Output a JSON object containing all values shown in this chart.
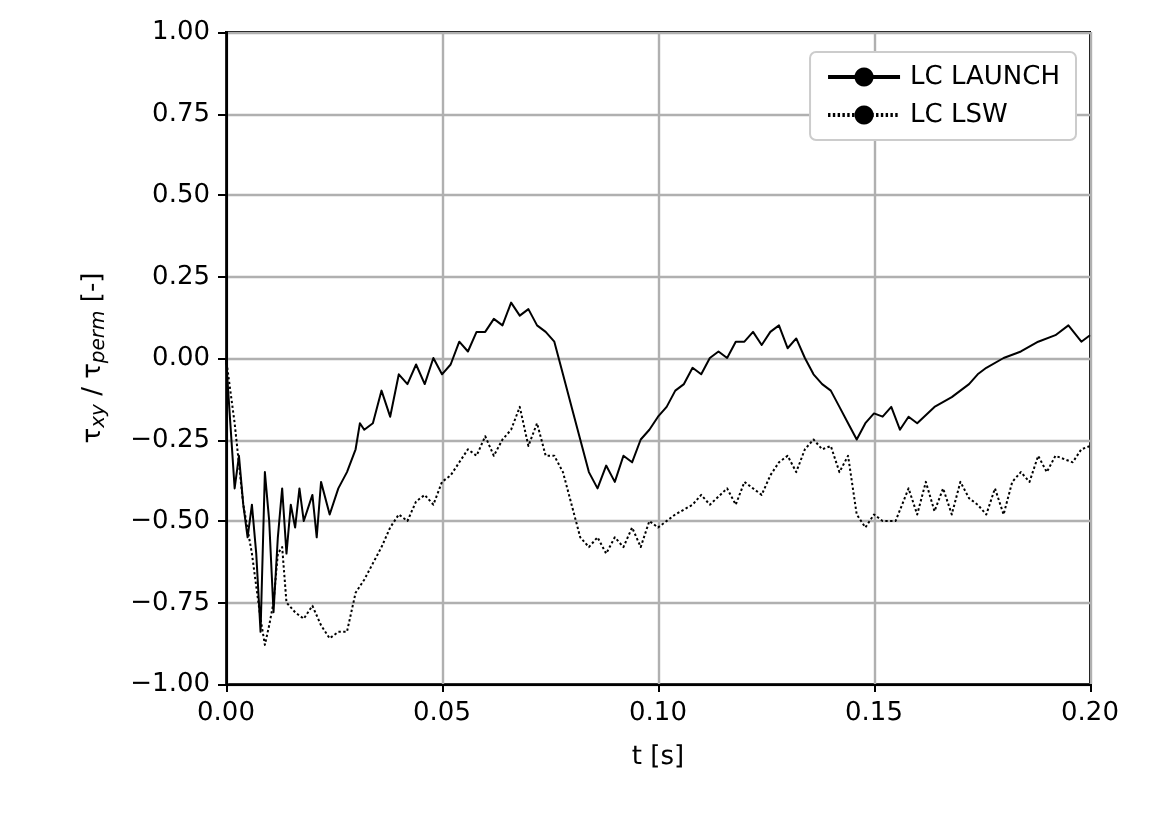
{
  "chart_data": {
    "type": "line",
    "xlabel": "t [s]",
    "ylabel": "τ$_{xy}$ / τ$_{perm}$ [-]",
    "xlim": [
      0,
      0.2
    ],
    "ylim": [
      -1,
      1
    ],
    "xticks": [
      {
        "value": 0,
        "label": "0.00"
      },
      {
        "value": 0.05,
        "label": "0.05"
      },
      {
        "value": 0.1,
        "label": "0.10"
      },
      {
        "value": 0.15,
        "label": "0.15"
      },
      {
        "value": 0.2,
        "label": "0.20"
      }
    ],
    "yticks": [
      {
        "value": -1,
        "label": "−1.00"
      },
      {
        "value": -0.75,
        "label": "−0.75"
      },
      {
        "value": -0.5,
        "label": "−0.50"
      },
      {
        "value": -0.25,
        "label": "−0.25"
      },
      {
        "value": 0,
        "label": "0.00"
      },
      {
        "value": 0.25,
        "label": "0.25"
      },
      {
        "value": 0.5,
        "label": "0.50"
      },
      {
        "value": 0.75,
        "label": "0.75"
      },
      {
        "value": 1,
        "label": "1.00"
      }
    ],
    "grid": true,
    "legend": "top right",
    "marker": "none",
    "series": [
      {
        "name": "LC LAUNCH",
        "color": "#000000",
        "line_style": "solid",
        "x": [
          0,
          0.002,
          0.003,
          0.004,
          0.005,
          0.006,
          0.007,
          0.008,
          0.009,
          0.01,
          0.011,
          0.012,
          0.013,
          0.014,
          0.015,
          0.016,
          0.017,
          0.018,
          0.02,
          0.021,
          0.022,
          0.024,
          0.026,
          0.028,
          0.03,
          0.031,
          0.032,
          0.034,
          0.036,
          0.038,
          0.04,
          0.042,
          0.044,
          0.046,
          0.048,
          0.05,
          0.052,
          0.054,
          0.056,
          0.058,
          0.06,
          0.062,
          0.064,
          0.066,
          0.068,
          0.07,
          0.072,
          0.074,
          0.076,
          0.078,
          0.08,
          0.082,
          0.084,
          0.086,
          0.088,
          0.09,
          0.092,
          0.094,
          0.096,
          0.098,
          0.1,
          0.102,
          0.104,
          0.106,
          0.108,
          0.11,
          0.112,
          0.114,
          0.116,
          0.118,
          0.12,
          0.122,
          0.124,
          0.126,
          0.128,
          0.13,
          0.132,
          0.134,
          0.136,
          0.138,
          0.14,
          0.142,
          0.144,
          0.146,
          0.148,
          0.15,
          0.152,
          0.154,
          0.156,
          0.158,
          0.16,
          0.164,
          0.168,
          0.17,
          0.172,
          0.174,
          0.176,
          0.18,
          0.184,
          0.188,
          0.192,
          0.195,
          0.198,
          0.2
        ],
        "values": [
          0,
          -0.4,
          -0.3,
          -0.45,
          -0.55,
          -0.45,
          -0.6,
          -0.84,
          -0.35,
          -0.5,
          -0.78,
          -0.55,
          -0.4,
          -0.6,
          -0.45,
          -0.52,
          -0.4,
          -0.5,
          -0.42,
          -0.55,
          -0.38,
          -0.48,
          -0.4,
          -0.35,
          -0.28,
          -0.2,
          -0.22,
          -0.2,
          -0.1,
          -0.18,
          -0.05,
          -0.08,
          -0.02,
          -0.08,
          0,
          -0.05,
          -0.02,
          0.05,
          0.02,
          0.08,
          0.08,
          0.12,
          0.1,
          0.17,
          0.13,
          0.15,
          0.1,
          0.08,
          0.05,
          -0.05,
          -0.15,
          -0.25,
          -0.35,
          -0.4,
          -0.33,
          -0.38,
          -0.3,
          -0.32,
          -0.25,
          -0.22,
          -0.18,
          -0.15,
          -0.1,
          -0.08,
          -0.03,
          -0.05,
          0,
          0.02,
          0,
          0.05,
          0.05,
          0.08,
          0.04,
          0.08,
          0.1,
          0.03,
          0.06,
          0,
          -0.05,
          -0.08,
          -0.1,
          -0.15,
          -0.2,
          -0.25,
          -0.2,
          -0.17,
          -0.18,
          -0.15,
          -0.22,
          -0.18,
          -0.2,
          -0.15,
          -0.12,
          -0.1,
          -0.08,
          -0.05,
          -0.03,
          0,
          0.02,
          0.05,
          0.07,
          0.1,
          0.05,
          0.07
        ]
      },
      {
        "name": "LC LSW",
        "color": "#000000",
        "line_style": "dotted",
        "x": [
          0,
          0.002,
          0.004,
          0.006,
          0.008,
          0.009,
          0.01,
          0.011,
          0.012,
          0.013,
          0.014,
          0.016,
          0.018,
          0.02,
          0.022,
          0.024,
          0.026,
          0.028,
          0.03,
          0.032,
          0.034,
          0.036,
          0.038,
          0.04,
          0.042,
          0.044,
          0.046,
          0.048,
          0.05,
          0.052,
          0.054,
          0.056,
          0.058,
          0.06,
          0.062,
          0.064,
          0.066,
          0.068,
          0.07,
          0.072,
          0.074,
          0.076,
          0.078,
          0.08,
          0.082,
          0.084,
          0.086,
          0.088,
          0.09,
          0.092,
          0.094,
          0.096,
          0.098,
          0.1,
          0.104,
          0.108,
          0.11,
          0.112,
          0.116,
          0.118,
          0.12,
          0.124,
          0.126,
          0.128,
          0.13,
          0.132,
          0.134,
          0.136,
          0.138,
          0.14,
          0.142,
          0.144,
          0.146,
          0.148,
          0.15,
          0.152,
          0.155,
          0.158,
          0.16,
          0.162,
          0.164,
          0.166,
          0.168,
          0.17,
          0.172,
          0.174,
          0.176,
          0.178,
          0.18,
          0.182,
          0.184,
          0.186,
          0.188,
          0.19,
          0.192,
          0.196,
          0.198,
          0.2
        ],
        "values": [
          0,
          -0.2,
          -0.45,
          -0.6,
          -0.8,
          -0.88,
          -0.82,
          -0.75,
          -0.6,
          -0.58,
          -0.75,
          -0.78,
          -0.8,
          -0.76,
          -0.82,
          -0.86,
          -0.84,
          -0.84,
          -0.72,
          -0.68,
          -0.63,
          -0.58,
          -0.52,
          -0.48,
          -0.5,
          -0.44,
          -0.42,
          -0.45,
          -0.38,
          -0.36,
          -0.32,
          -0.28,
          -0.3,
          -0.24,
          -0.3,
          -0.25,
          -0.22,
          -0.15,
          -0.27,
          -0.2,
          -0.3,
          -0.3,
          -0.35,
          -0.45,
          -0.55,
          -0.58,
          -0.55,
          -0.6,
          -0.55,
          -0.58,
          -0.52,
          -0.58,
          -0.5,
          -0.52,
          -0.48,
          -0.45,
          -0.42,
          -0.45,
          -0.4,
          -0.45,
          -0.38,
          -0.42,
          -0.36,
          -0.32,
          -0.3,
          -0.35,
          -0.28,
          -0.25,
          -0.28,
          -0.27,
          -0.35,
          -0.3,
          -0.48,
          -0.52,
          -0.48,
          -0.5,
          -0.5,
          -0.4,
          -0.48,
          -0.38,
          -0.47,
          -0.4,
          -0.48,
          -0.38,
          -0.43,
          -0.45,
          -0.48,
          -0.4,
          -0.48,
          -0.38,
          -0.35,
          -0.38,
          -0.3,
          -0.35,
          -0.3,
          -0.32,
          -0.28,
          -0.27
        ]
      }
    ]
  }
}
